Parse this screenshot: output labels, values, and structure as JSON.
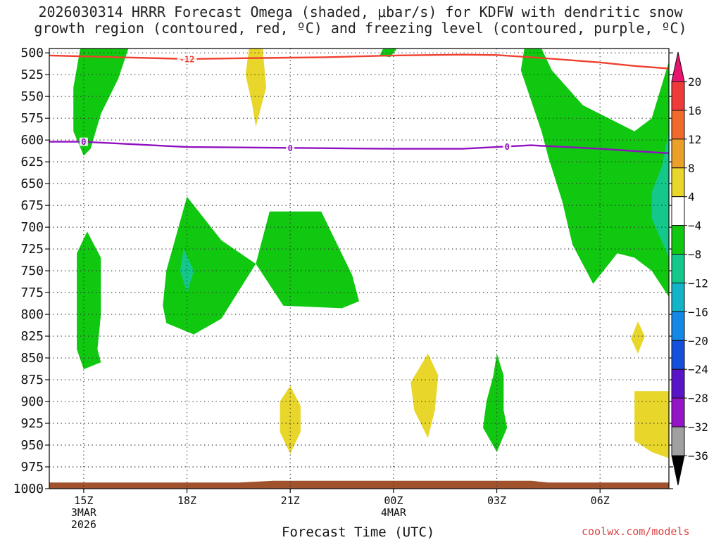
{
  "title": {
    "line1": "2026030314 HRRR Forecast Omega (shaded, μbar/s) for KDFW with dendritic snow",
    "line2": "growth region (contoured, red, ºC) and freezing level (contoured, purple, ºC)"
  },
  "watermark": "coolwx.com/models",
  "chart_data": {
    "type": "heatmap",
    "xlabel": "Forecast Time (UTC)",
    "ylabel": "",
    "x_ticks": [
      {
        "hour": 0,
        "label": "15Z",
        "sub1": "3MAR",
        "sub2": "2026"
      },
      {
        "hour": 3,
        "label": "18Z",
        "sub1": "",
        "sub2": ""
      },
      {
        "hour": 6,
        "label": "21Z",
        "sub1": "",
        "sub2": ""
      },
      {
        "hour": 9,
        "label": "00Z",
        "sub1": "4MAR",
        "sub2": ""
      },
      {
        "hour": 12,
        "label": "03Z",
        "sub1": "",
        "sub2": ""
      },
      {
        "hour": 15,
        "label": "06Z",
        "sub1": "",
        "sub2": ""
      }
    ],
    "x_range_hours": [
      -1,
      17
    ],
    "y_ticks": [
      500,
      525,
      550,
      575,
      600,
      625,
      650,
      675,
      700,
      725,
      750,
      775,
      800,
      825,
      850,
      875,
      900,
      925,
      950,
      975,
      1000
    ],
    "y_range": [
      495,
      1000
    ],
    "grid": true,
    "colorbar": {
      "labels": [
        "20",
        "16",
        "12",
        "8",
        "4",
        "−4",
        "−8",
        "−12",
        "−16",
        "−20",
        "−24",
        "−28",
        "−32",
        "−36"
      ],
      "colors": [
        "#e8146e",
        "#ef3a3a",
        "#f06a2b",
        "#eba02a",
        "#e8d62a",
        "#ffffff",
        "#10c810",
        "#14c88c",
        "#14b4c8",
        "#1488e6",
        "#1450dc",
        "#5a14c8",
        "#9614c8",
        "#a0a0a0",
        "#000000"
      ]
    },
    "freezing_level": {
      "label": "0",
      "color": "#9010c0",
      "points": [
        [
          -1,
          602
        ],
        [
          0,
          602
        ],
        [
          1,
          604
        ],
        [
          3,
          608
        ],
        [
          6,
          609
        ],
        [
          9,
          610
        ],
        [
          11,
          610
        ],
        [
          12,
          608
        ],
        [
          13,
          606
        ],
        [
          14,
          608
        ],
        [
          15,
          610
        ],
        [
          16.5,
          614
        ],
        [
          17,
          615
        ]
      ]
    },
    "dgz_contour": {
      "label": "-12",
      "color": "#f04030",
      "points": [
        [
          -1,
          503
        ],
        [
          1,
          505
        ],
        [
          3,
          507
        ],
        [
          5,
          506
        ],
        [
          7,
          505
        ],
        [
          9,
          503
        ],
        [
          11,
          502
        ],
        [
          12,
          502.5
        ],
        [
          13,
          505
        ],
        [
          14,
          508
        ],
        [
          15,
          511
        ],
        [
          16,
          515
        ],
        [
          17,
          518
        ]
      ]
    },
    "shaded_regions": [
      {
        "color": "#10c810",
        "points": [
          [
            -0.1,
            495
          ],
          [
            1.3,
            495
          ],
          [
            1,
            530
          ],
          [
            0.5,
            570
          ],
          [
            0.2,
            610
          ],
          [
            0,
            618
          ],
          [
            -0.3,
            590
          ],
          [
            -0.3,
            540
          ]
        ]
      },
      {
        "color": "#10c810",
        "points": [
          [
            0.1,
            705
          ],
          [
            0.5,
            735
          ],
          [
            0.5,
            800
          ],
          [
            0.4,
            840
          ],
          [
            0.5,
            855
          ],
          [
            0,
            863
          ],
          [
            -0.2,
            840
          ],
          [
            -0.2,
            730
          ]
        ]
      },
      {
        "color": "#10c810",
        "points": [
          [
            3,
            665
          ],
          [
            4,
            715
          ],
          [
            5,
            742
          ],
          [
            4,
            805
          ],
          [
            3.2,
            823
          ],
          [
            2.4,
            810
          ],
          [
            2.3,
            790
          ],
          [
            2.4,
            750
          ]
        ]
      },
      {
        "color": "#10c810",
        "points": [
          [
            5.4,
            682
          ],
          [
            6.9,
            682
          ],
          [
            7.8,
            755
          ],
          [
            8.0,
            785
          ],
          [
            7.5,
            793
          ],
          [
            5.8,
            790
          ],
          [
            5.0,
            742
          ]
        ]
      },
      {
        "color": "#10c810",
        "points": [
          [
            8.7,
            495
          ],
          [
            9.1,
            495
          ],
          [
            8.9,
            505
          ],
          [
            8.6,
            503
          ]
        ]
      },
      {
        "color": "#10c810",
        "points": [
          [
            12.8,
            495
          ],
          [
            13.3,
            495
          ],
          [
            13.6,
            520
          ],
          [
            14.5,
            560
          ],
          [
            15.5,
            580
          ],
          [
            16,
            590
          ],
          [
            16.5,
            575
          ],
          [
            17,
            510
          ],
          [
            17,
            780
          ],
          [
            16.5,
            750
          ],
          [
            16,
            735
          ],
          [
            15.5,
            730
          ],
          [
            15,
            755
          ],
          [
            14.8,
            765
          ],
          [
            14.2,
            720
          ],
          [
            13.9,
            670
          ],
          [
            13.5,
            620
          ],
          [
            13.3,
            590
          ],
          [
            12.7,
            520
          ]
        ]
      },
      {
        "color": "#14c88c",
        "points": [
          [
            17,
            590
          ],
          [
            16.8,
            630
          ],
          [
            16.5,
            660
          ],
          [
            16.5,
            690
          ],
          [
            17,
            735
          ]
        ]
      },
      {
        "color": "#14c88c",
        "points": [
          [
            2.9,
            725
          ],
          [
            3.2,
            750
          ],
          [
            3.0,
            775
          ],
          [
            2.8,
            750
          ]
        ]
      },
      {
        "color": "#10c810",
        "points": [
          [
            12,
            845
          ],
          [
            12.2,
            870
          ],
          [
            12.2,
            910
          ],
          [
            12.3,
            930
          ],
          [
            12,
            958
          ],
          [
            11.6,
            930
          ],
          [
            11.7,
            900
          ],
          [
            11.9,
            870
          ]
        ]
      },
      {
        "color": "#e8d62a",
        "points": [
          [
            4.8,
            495
          ],
          [
            5.2,
            495
          ],
          [
            5.3,
            540
          ],
          [
            5.0,
            585
          ],
          [
            4.9,
            560
          ],
          [
            4.7,
            525
          ]
        ]
      },
      {
        "color": "#e8d62a",
        "points": [
          [
            6,
            882
          ],
          [
            6.3,
            905
          ],
          [
            6.3,
            935
          ],
          [
            6.0,
            960
          ],
          [
            5.7,
            935
          ],
          [
            5.7,
            900
          ]
        ]
      },
      {
        "color": "#e8d62a",
        "points": [
          [
            10,
            845
          ],
          [
            10.3,
            870
          ],
          [
            10.2,
            910
          ],
          [
            10,
            942
          ],
          [
            9.6,
            910
          ],
          [
            9.5,
            878
          ]
        ]
      },
      {
        "color": "#e8d62a",
        "points": [
          [
            16.1,
            808
          ],
          [
            16.3,
            825
          ],
          [
            16.1,
            845
          ],
          [
            15.9,
            828
          ]
        ]
      },
      {
        "color": "#e8d62a",
        "points": [
          [
            16,
            888
          ],
          [
            17,
            888
          ],
          [
            17,
            965
          ],
          [
            16.5,
            958
          ],
          [
            16,
            945
          ]
        ]
      }
    ],
    "surface_band": {
      "color": "#a0522d",
      "points": [
        [
          -1,
          993
        ],
        [
          4.5,
          993
        ],
        [
          5.5,
          991
        ],
        [
          13,
          991
        ],
        [
          13.5,
          993
        ],
        [
          17,
          993
        ],
        [
          17,
          1002
        ],
        [
          -1,
          1002
        ]
      ]
    }
  }
}
